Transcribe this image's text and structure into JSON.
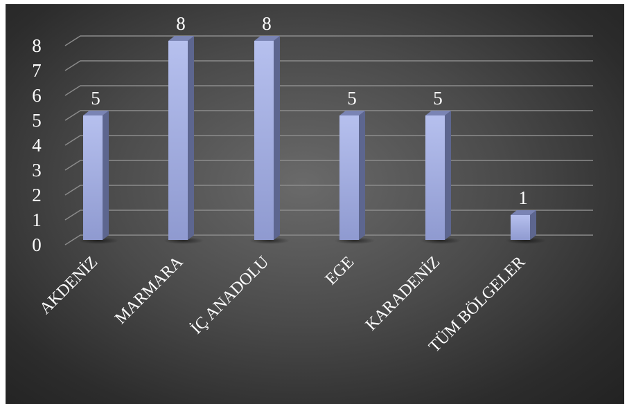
{
  "chart_data": {
    "type": "bar",
    "categories": [
      "AKDENİZ",
      "MARMARA",
      "İÇ ANADOLU",
      "EGE",
      "KARADENİZ",
      "TÜM BÖLGELER"
    ],
    "values": [
      5,
      8,
      8,
      5,
      5,
      1
    ],
    "yticks": [
      "0",
      "1",
      "2",
      "3",
      "4",
      "5",
      "6",
      "7",
      "8"
    ],
    "ylim": [
      0,
      8
    ],
    "title": "",
    "xlabel": "",
    "ylabel": "",
    "grid": true,
    "legend": "none",
    "bar_color": "#aab4e6",
    "background_color": "#4a4a4a"
  }
}
